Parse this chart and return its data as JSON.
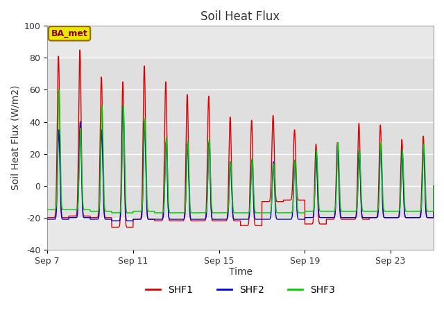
{
  "title": "Soil Heat Flux",
  "xlabel": "Time",
  "ylabel": "Soil Heat Flux (W/m2)",
  "ylim": [
    -40,
    100
  ],
  "yticks": [
    -40,
    -20,
    0,
    20,
    40,
    60,
    80,
    100
  ],
  "fig_bg_color": "#ffffff",
  "plot_bg_color": "#e8e8e8",
  "band_color": "#d0d0d0",
  "grid_color": "#ffffff",
  "line_colors": {
    "SHF1": "#dd0000",
    "SHF2": "#0000dd",
    "SHF3": "#00cc00"
  },
  "legend_label": "BA_met",
  "legend_box_facecolor": "#e8e800",
  "legend_box_edgecolor": "#996600",
  "xtick_days": [
    7,
    11,
    15,
    19,
    23
  ],
  "xtick_labels": [
    "Sep 7",
    "Sep 11",
    "Sep 15",
    "Sep 19",
    "Sep 23"
  ],
  "num_days": 18,
  "pts_per_day": 480,
  "shf1_peaks": [
    81,
    85,
    68,
    65,
    75,
    65,
    57,
    56,
    43,
    41,
    44,
    35,
    26,
    27,
    39,
    38,
    29,
    31
  ],
  "shf1_troughs": [
    -20,
    -19,
    -20,
    -26,
    -21,
    -22,
    -22,
    -22,
    -22,
    -25,
    -10,
    -9,
    -24,
    -21,
    -21,
    -20,
    -20,
    -20
  ],
  "shf2_peaks": [
    35,
    40,
    35,
    50,
    40,
    27,
    26,
    27,
    15,
    16,
    15,
    16,
    21,
    26,
    22,
    25,
    22,
    25
  ],
  "shf2_troughs": [
    -21,
    -20,
    -21,
    -22,
    -21,
    -21,
    -21,
    -21,
    -21,
    -21,
    -21,
    -21,
    -20,
    -20,
    -20,
    -20,
    -20,
    -20
  ],
  "shf3_peaks": [
    60,
    36,
    50,
    50,
    42,
    30,
    28,
    29,
    15,
    17,
    14,
    16,
    22,
    27,
    22,
    27,
    22,
    26
  ],
  "shf3_troughs": [
    -15,
    -15,
    -16,
    -17,
    -16,
    -17,
    -17,
    -17,
    -17,
    -17,
    -17,
    -17,
    -16,
    -16,
    -16,
    -16,
    -16,
    -16
  ],
  "peak_hour": 12.5,
  "sharpness": 8.0
}
